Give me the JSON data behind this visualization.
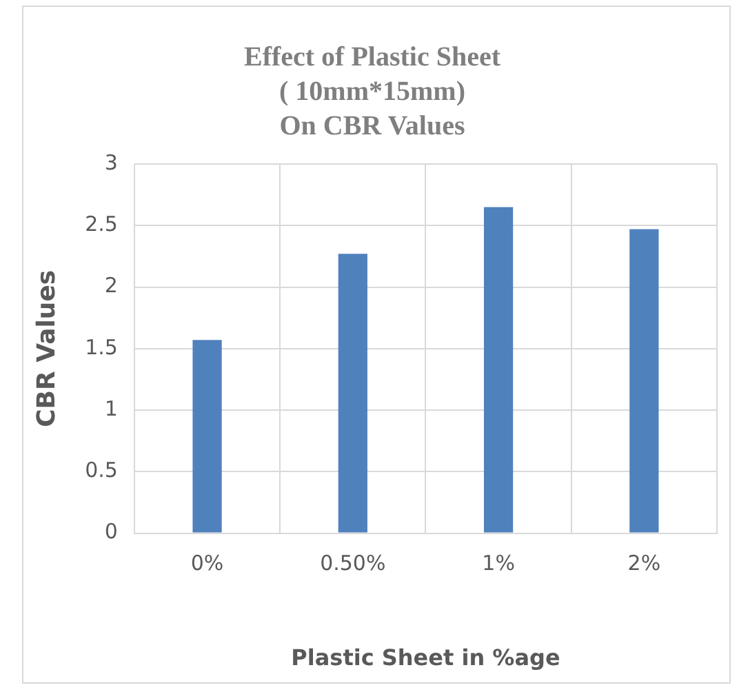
{
  "chart_data": {
    "type": "bar",
    "title": "Effect of Plastic Sheet\n( 10mm*15mm)\nOn CBR Values",
    "xlabel": "Plastic Sheet in %age",
    "ylabel": "CBR Values",
    "categories": [
      "0%",
      "0.50%",
      "1%",
      "2%"
    ],
    "values": [
      1.57,
      2.27,
      2.65,
      2.47
    ],
    "color": "#4f81bd",
    "ylim": [
      0,
      3
    ],
    "yticks": [
      0,
      0.5,
      1,
      1.5,
      2,
      2.5,
      3
    ],
    "grid": true,
    "legend": false
  }
}
